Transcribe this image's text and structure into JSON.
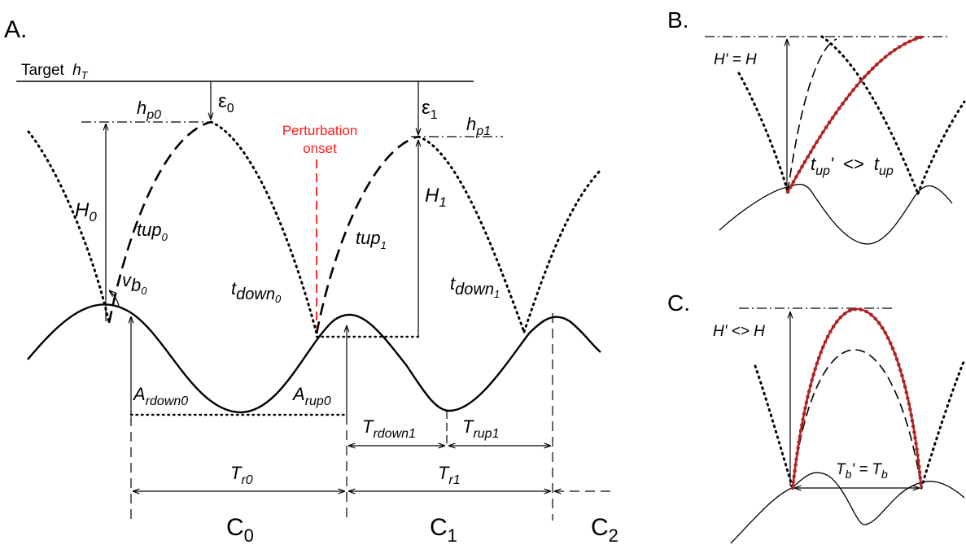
{
  "panels": {
    "a": {
      "tag": "A.",
      "target_label": "Target",
      "target_sym": "h",
      "target_sub": "T",
      "hp0_sym": "h",
      "hp0_sub": "p0",
      "hp1_sym": "h",
      "hp1_sub": "p1",
      "eps0_sym": "ε",
      "eps0_sub": "0",
      "eps1_sym": "ε",
      "eps1_sub": "1",
      "H0_sym": "H",
      "H0_sub": "0",
      "H1_sym": "H",
      "H1_sub": "1",
      "tup0_sym": "t",
      "tup0_mid": "up",
      "tup0_sub": "0",
      "tup1_sym": "t",
      "tup1_mid": "up",
      "tup1_sub": "1",
      "tdown0_sym": "t",
      "tdown0_mid": "down",
      "tdown0_sub": "0",
      "tdown1_sym": "t",
      "tdown1_mid": "down",
      "tdown1_sub": "1",
      "vb0_sym": "v",
      "vb0_mid": "b",
      "vb0_sub": "0",
      "perturbation_line1": "Perturbation",
      "perturbation_line2": "onset",
      "ardown0_sym": "A",
      "ardown0_sub": "rdown0",
      "arup0_sym": "A",
      "arup0_sub": "rup0",
      "trdown1_sym": "T",
      "trdown1_sub": "rdown1",
      "trup1_sym": "T",
      "trup1_sub": "rup1",
      "tr0_sym": "T",
      "tr0_sub": "r0",
      "tr1_sym": "T",
      "tr1_sub": "r1",
      "c0_sym": "C",
      "c0_sub": "0",
      "c1_sym": "C",
      "c1_sub": "1",
      "c2_sym": "C",
      "c2_sub": "2"
    },
    "b": {
      "tag": "B.",
      "h_relation": "H' = H",
      "tup_prime_sym": "t",
      "tup_prime_sub": "up",
      "tup_prime_mark": "'",
      "tup_relation": "<>",
      "tup_sym": "t",
      "tup_sub": "up"
    },
    "c": {
      "tag": "C.",
      "h_relation": "H' <> H",
      "tb_prime_sym": "T",
      "tb_prime_sub": "b",
      "tb_prime_mark": "' =",
      "tb_sym": "T",
      "tb_sub": "b"
    }
  },
  "colors": {
    "ink": "#000000",
    "perturbation": "#ff1a1a",
    "modified_trajectory": "#b22222"
  }
}
